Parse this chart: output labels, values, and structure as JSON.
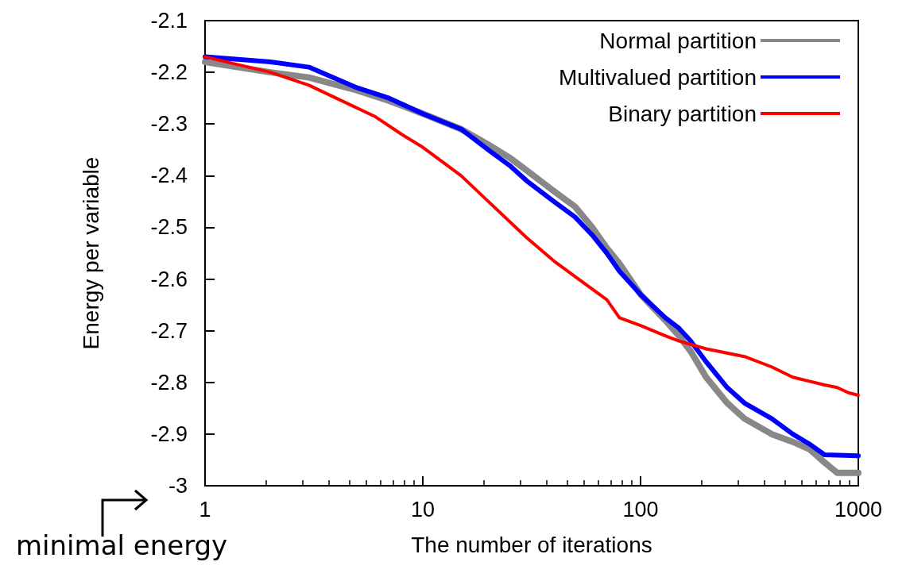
{
  "chart_data": {
    "type": "line",
    "xlabel": "The number of iterations",
    "ylabel": "Energy per variable",
    "annotations": [
      "minimal energy"
    ],
    "log": "x",
    "xlim": [
      1,
      1000
    ],
    "xticks": [
      1,
      10,
      100,
      1000
    ],
    "ylim": [
      -3,
      -2.1
    ],
    "yticks": [
      -3,
      -2.9,
      -2.8,
      -2.7,
      -2.6,
      -2.5,
      -2.4,
      -2.3,
      -2.2,
      -2.1
    ],
    "grid": false,
    "legend": "top right",
    "marker": "none",
    "line_style": "solid",
    "series": [
      {
        "name": "Normal partition",
        "color": "#888888",
        "x": [
          1,
          2,
          3,
          5,
          7,
          10,
          15,
          20,
          25,
          30,
          40,
          50,
          60,
          70,
          80,
          100,
          130,
          150,
          170,
          200,
          250,
          300,
          400,
          500,
          600,
          700,
          800,
          1000
        ],
        "values": [
          -2.18,
          -2.2,
          -2.21,
          -2.235,
          -2.255,
          -2.28,
          -2.31,
          -2.34,
          -2.365,
          -2.39,
          -2.43,
          -2.46,
          -2.5,
          -2.54,
          -2.57,
          -2.63,
          -2.68,
          -2.71,
          -2.74,
          -2.79,
          -2.84,
          -2.87,
          -2.9,
          -2.915,
          -2.93,
          -2.955,
          -2.975,
          -2.975
        ]
      },
      {
        "name": "Multivalued partition",
        "color": "#0000ff",
        "x": [
          1,
          2,
          3,
          5,
          7,
          10,
          15,
          20,
          25,
          30,
          40,
          50,
          60,
          70,
          80,
          100,
          130,
          150,
          170,
          200,
          250,
          300,
          400,
          500,
          600,
          700,
          1000
        ],
        "values": [
          -2.17,
          -2.18,
          -2.19,
          -2.23,
          -2.25,
          -2.28,
          -2.31,
          -2.35,
          -2.38,
          -2.41,
          -2.45,
          -2.48,
          -2.515,
          -2.55,
          -2.585,
          -2.63,
          -2.675,
          -2.695,
          -2.72,
          -2.76,
          -2.81,
          -2.84,
          -2.87,
          -2.9,
          -2.92,
          -2.94,
          -2.942
        ]
      },
      {
        "name": "Binary partition",
        "color": "#ff0000",
        "x": [
          1,
          2,
          3,
          4,
          6,
          8,
          10,
          15,
          20,
          30,
          40,
          50,
          70,
          80,
          100,
          130,
          150,
          200,
          300,
          400,
          500,
          700,
          800,
          900,
          1000
        ],
        "values": [
          -2.17,
          -2.2,
          -2.225,
          -2.25,
          -2.285,
          -2.32,
          -2.345,
          -2.4,
          -2.45,
          -2.52,
          -2.565,
          -2.595,
          -2.64,
          -2.675,
          -2.69,
          -2.71,
          -2.72,
          -2.735,
          -2.75,
          -2.77,
          -2.79,
          -2.805,
          -2.81,
          -2.82,
          -2.825
        ]
      }
    ]
  }
}
